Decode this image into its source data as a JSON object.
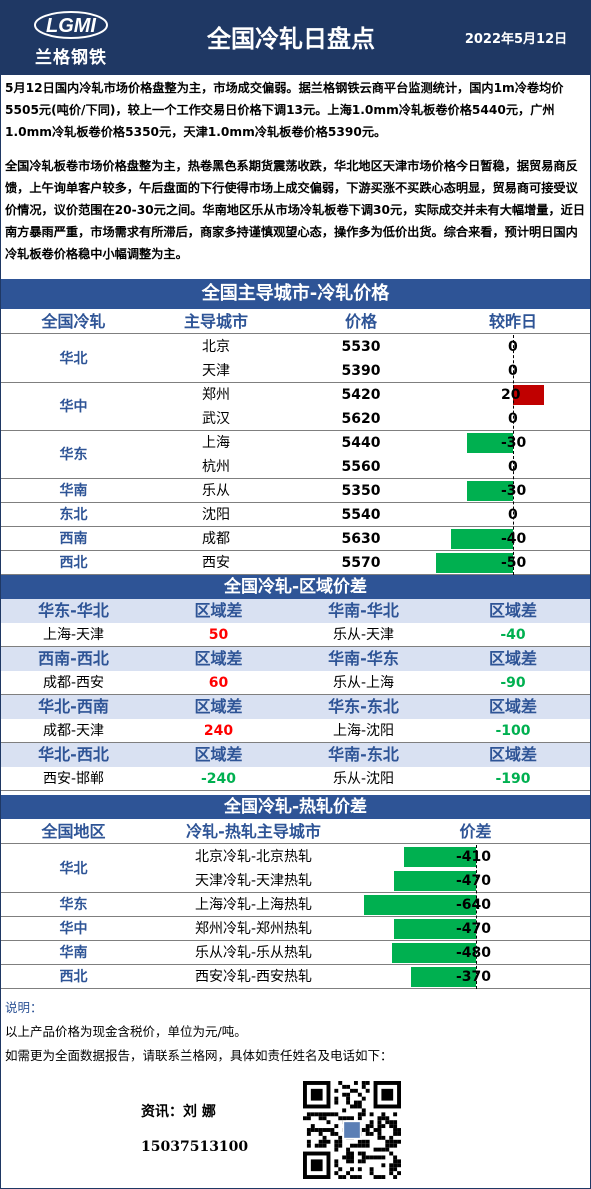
{
  "header": {
    "logo_letters": "LGMI",
    "logo_name": "兰格钢铁",
    "title": "全国冷轧日盘点",
    "date": "2022年5月12日"
  },
  "summary": {
    "p1": "5月12日国内冷轧市场价格盘整为主，市场成交偏弱。据兰格钢铁云商平台监测统计，国内1m冷卷均价5505元(吨价/下同)，较上一个工作交易日价格下调13元。上海1.0mm冷轧板卷价格5440元，广州1.0mm冷轧板卷价格5350元，天津1.0mm冷轧板卷价格5390元。",
    "p2": "全国冷轧板卷市场价格盘整为主，热卷黑色系期货震荡收跌，华北地区天津市场价格今日暂稳，据贸易商反馈，上午询单客户较多，午后盘面的下行使得市场上成交偏弱，下游买涨不买跌心态明显，贸易商可接受议价情况，议价范围在20-30元之间。华南地区乐从市场冷轧板卷下调30元，实际成交并未有大幅增量，近日南方暴雨严重，市场需求有所滞后，商家多持谨慎观望心态，操作多为低价出货。综合来看，预计明日国内冷轧板卷价格稳中小幅调整为主。"
  },
  "section1": {
    "title": "全国主导城市-冷轧价格",
    "headers": [
      "全国冷轧",
      "主导城市",
      "价格",
      "较昨日"
    ],
    "rows": [
      {
        "region": "华北",
        "city": "北京",
        "price": "5530",
        "change": 0
      },
      {
        "region": "",
        "city": "天津",
        "price": "5390",
        "change": 0
      },
      {
        "region": "华中",
        "city": "郑州",
        "price": "5420",
        "change": 20
      },
      {
        "region": "",
        "city": "武汉",
        "price": "5620",
        "change": 0
      },
      {
        "region": "华东",
        "city": "上海",
        "price": "5440",
        "change": -30
      },
      {
        "region": "",
        "city": "杭州",
        "price": "5560",
        "change": 0
      },
      {
        "region": "华南",
        "city": "乐从",
        "price": "5350",
        "change": -30
      },
      {
        "region": "东北",
        "city": "沈阳",
        "price": "5540",
        "change": 0
      },
      {
        "region": "西南",
        "city": "成都",
        "price": "5630",
        "change": -40
      },
      {
        "region": "西北",
        "city": "西安",
        "price": "5570",
        "change": -50
      }
    ],
    "merged_regions": [
      {
        "label": "华北",
        "rows": 2
      },
      {
        "label": "华中",
        "rows": 2
      },
      {
        "label": "华东",
        "rows": 2
      },
      {
        "label": "华南",
        "rows": 1
      },
      {
        "label": "东北",
        "rows": 1
      },
      {
        "label": "西南",
        "rows": 1
      },
      {
        "label": "西北",
        "rows": 1
      }
    ]
  },
  "section2": {
    "title": "全国冷轧-区域价差",
    "groups": [
      {
        "left_title": "华东-华北",
        "left_col": "区域差",
        "right_title": "华南-华北",
        "right_col": "区域差",
        "left_pair": "上海-天津",
        "left_val": "50",
        "left_sign": "pos",
        "right_pair": "乐从-天津",
        "right_val": "-40",
        "right_sign": "neg"
      },
      {
        "left_title": "西南-西北",
        "left_col": "区域差",
        "right_title": "华南-华东",
        "right_col": "区域差",
        "left_pair": "成都-西安",
        "left_val": "60",
        "left_sign": "pos",
        "right_pair": "乐从-上海",
        "right_val": "-90",
        "right_sign": "neg"
      },
      {
        "left_title": "华北-西南",
        "left_col": "区域差",
        "right_title": "华东-东北",
        "right_col": "区域差",
        "left_pair": "成都-天津",
        "left_val": "240",
        "left_sign": "pos",
        "right_pair": "上海-沈阳",
        "right_val": "-100",
        "right_sign": "neg"
      },
      {
        "left_title": "华北-西北",
        "left_col": "区域差",
        "right_title": "华南-东北",
        "right_col": "区域差",
        "left_pair": "西安-邯郸",
        "left_val": "-240",
        "left_sign": "neg",
        "right_pair": "乐从-沈阳",
        "right_val": "-190",
        "right_sign": "neg"
      }
    ]
  },
  "section3": {
    "title": "全国冷轧-热轧价差",
    "headers": [
      "全国地区",
      "冷轧-热轧主导城市",
      "价差"
    ],
    "rows": [
      {
        "region": "华北",
        "pair": "北京冷轧-北京热轧",
        "diff": -410
      },
      {
        "region": "",
        "pair": "天津冷轧-天津热轧",
        "diff": -470
      },
      {
        "region": "华东",
        "pair": "上海冷轧-上海热轧",
        "diff": -640
      },
      {
        "region": "华中",
        "pair": "郑州冷轧-郑州热轧",
        "diff": -470
      },
      {
        "region": "华南",
        "pair": "乐从冷轧-乐从热轧",
        "diff": -480
      },
      {
        "region": "西北",
        "pair": "西安冷轧-西安热轧",
        "diff": -370
      }
    ],
    "merged_regions": [
      {
        "label": "华北",
        "rows": 2
      },
      {
        "label": "华东",
        "rows": 1
      },
      {
        "label": "华中",
        "rows": 1
      },
      {
        "label": "华南",
        "rows": 1
      },
      {
        "label": "西北",
        "rows": 1
      }
    ]
  },
  "notes": {
    "label": "说明：",
    "line1": "以上产品价格为现金含税价，单位为元/吨。",
    "line2": "如需更为全面数据报告，请联系兰格网，具体如责任姓名及电话如下："
  },
  "contact": {
    "name": "资讯：刘  娜",
    "phone": "15037513100"
  },
  "colors": {
    "navy": "#1f3864",
    "blue": "#2e5496",
    "increase": "#c00000",
    "decrease": "#00b050"
  },
  "icons": {
    "logo": "lgmi-logo-icon",
    "qr": "qr-code-icon"
  }
}
